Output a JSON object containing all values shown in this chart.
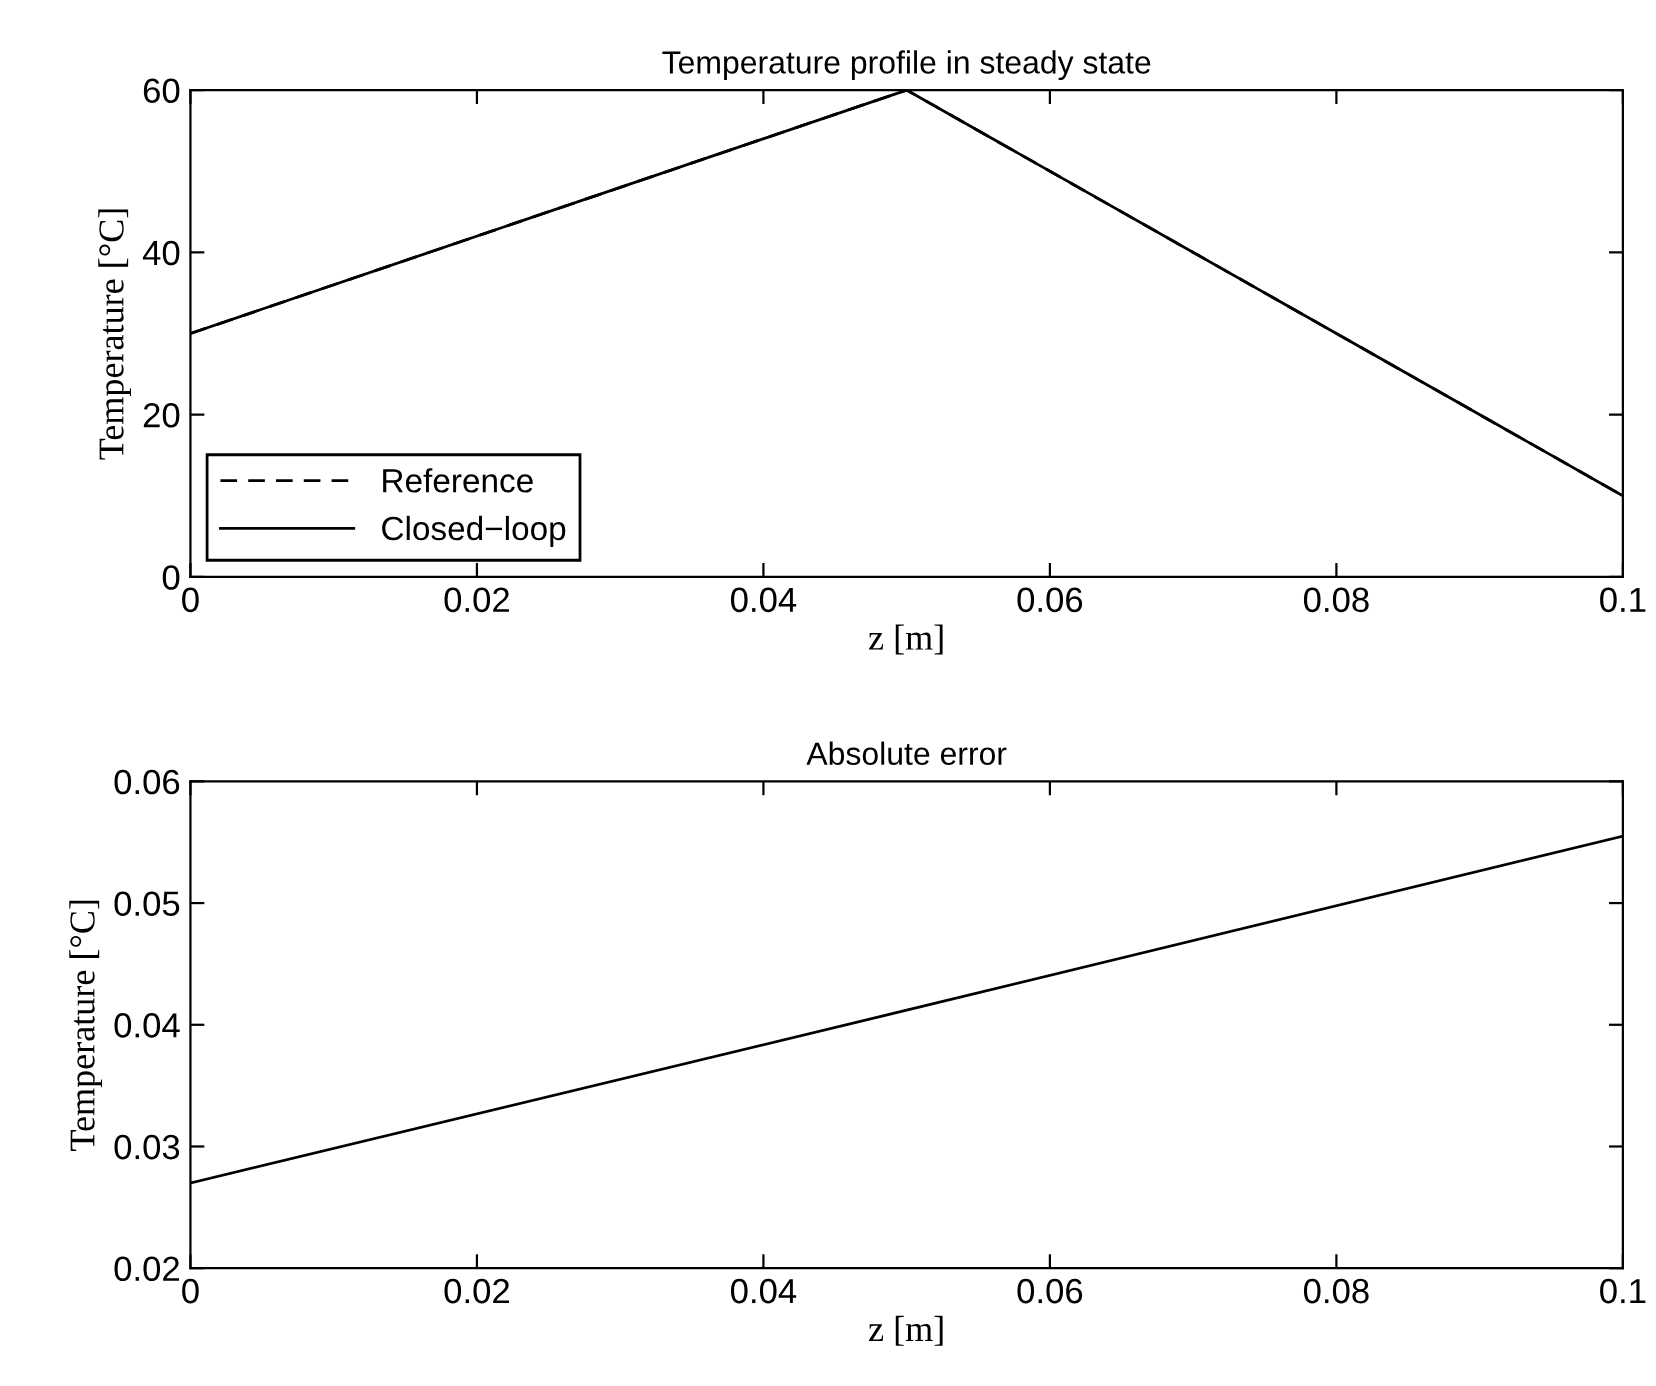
{
  "chart_data": [
    {
      "type": "line",
      "title": "Temperature profile in steady state",
      "xlabel": "z [m]",
      "ylabel": "Temperature [°C]",
      "x": [
        0,
        0.05,
        0.1
      ],
      "series": [
        {
          "name": "Reference",
          "color": "#000000",
          "line_style": "dashed",
          "values": [
            30,
            60,
            10
          ]
        },
        {
          "name": "Closed−loop",
          "color": "#000000",
          "line_style": "solid",
          "values": [
            30,
            60,
            10
          ]
        }
      ],
      "xlim": [
        0,
        0.1
      ],
      "xticks": [
        0,
        0.02,
        0.04,
        0.06,
        0.08,
        0.1
      ],
      "ylim": [
        0,
        60
      ],
      "yticks": [
        0,
        20,
        40,
        60
      ],
      "grid": false,
      "legend": "bottom left"
    },
    {
      "type": "line",
      "title": "Absolute error",
      "xlabel": "z [m]",
      "ylabel": "Temperature [°C]",
      "x": [
        0,
        0.05,
        0.1
      ],
      "series": [
        {
          "color": "#000000",
          "values": [
            0.027,
            0.0412,
            0.0555
          ]
        }
      ],
      "xlim": [
        0,
        0.1
      ],
      "xticks": [
        0,
        0.02,
        0.04,
        0.06,
        0.08,
        0.1
      ],
      "ylim": [
        0.02,
        0.06
      ],
      "yticks": [
        0.02,
        0.03,
        0.04,
        0.05,
        0.06
      ],
      "grid": false
    }
  ]
}
